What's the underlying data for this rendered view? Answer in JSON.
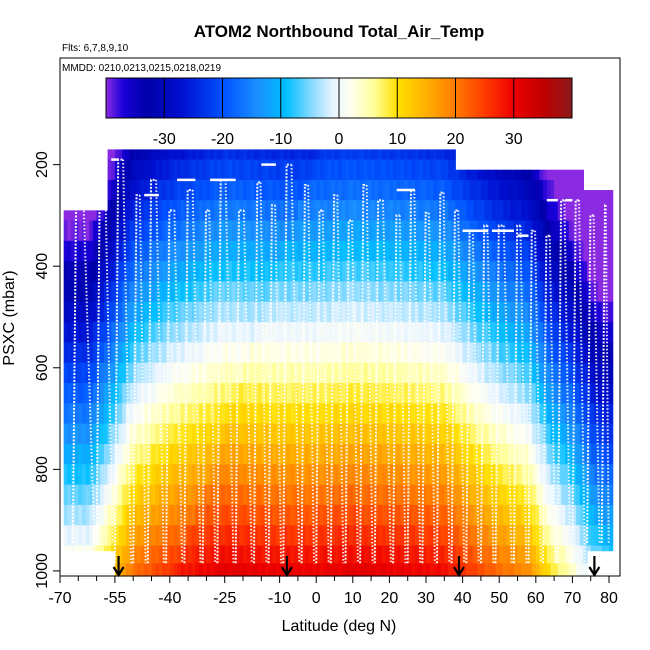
{
  "chart_data": {
    "type": "heatmap",
    "title": "ATOM2 Northbound Total_Air_Temp",
    "flights_note": "Flts: 6,7,8,9,10",
    "dates_note": "MMDD: 0210,0213,0215,0218,0219",
    "xlabel": "Latitude (deg N)",
    "ylabel": "PSXC (mbar)",
    "xlim": [
      -70,
      83
    ],
    "ylim": [
      1010,
      -10
    ],
    "x_major_ticks": [
      -70,
      -55,
      -40,
      -25,
      -10,
      0,
      10,
      20,
      30,
      40,
      50,
      60,
      70,
      80
    ],
    "x_major_tick_labels": [
      "-70",
      "-55",
      "-40",
      "-25",
      "-10",
      "0",
      "10",
      "20",
      "30",
      "40",
      "50",
      "60",
      "70",
      "80"
    ],
    "x_minor_ticks": [
      -65,
      -60,
      -50,
      -45,
      -35,
      -30,
      -20,
      -15,
      -5,
      5,
      15,
      25,
      35,
      45,
      55,
      65,
      75
    ],
    "y_ticks": [
      200,
      400,
      600,
      800,
      1000
    ],
    "y_tick_labels": [
      "200",
      "400",
      "600",
      "800",
      "1000"
    ],
    "colorbar": {
      "range": [
        -40,
        40
      ],
      "ticks": [
        -30,
        -20,
        -10,
        0,
        10,
        20,
        30
      ],
      "tick_labels": [
        "-30",
        "-20",
        "-10",
        "0",
        "10",
        "20",
        "30"
      ],
      "stops": [
        {
          "v": -40,
          "c": "#8a2be2"
        },
        {
          "v": -37,
          "c": "#1800d8"
        },
        {
          "v": -33,
          "c": "#0000a8"
        },
        {
          "v": -27,
          "c": "#0010d0"
        },
        {
          "v": -20,
          "c": "#0050ff"
        },
        {
          "v": -14,
          "c": "#1a90ff"
        },
        {
          "v": -9,
          "c": "#00bfff"
        },
        {
          "v": -5,
          "c": "#80d8ff"
        },
        {
          "v": -1,
          "c": "#e8f4ff"
        },
        {
          "v": 2,
          "c": "#fffff0"
        },
        {
          "v": 6,
          "c": "#ffff9a"
        },
        {
          "v": 10,
          "c": "#ffe000"
        },
        {
          "v": 15,
          "c": "#ffb000"
        },
        {
          "v": 20,
          "c": "#ff7a00"
        },
        {
          "v": 25,
          "c": "#ff3c00"
        },
        {
          "v": 30,
          "c": "#ee0000"
        },
        {
          "v": 35,
          "c": "#c00000"
        },
        {
          "v": 40,
          "c": "#8b1a1a"
        }
      ]
    },
    "pressure_levels": [
      170,
      210,
      250,
      290,
      330,
      370,
      410,
      450,
      490,
      530,
      570,
      610,
      650,
      690,
      730,
      770,
      810,
      850,
      890,
      930,
      970,
      1000
    ],
    "temperature_model": {
      "t_surface": 28,
      "lapse_per_100mbar": 6.4,
      "lat_columns": [
        {
          "lat": -68,
          "sfc": 5
        },
        {
          "lat": -62,
          "sfc": 5
        },
        {
          "lat": -56,
          "sfc": 13
        },
        {
          "lat": -50,
          "sfc": 22
        },
        {
          "lat": -40,
          "sfc": 27
        },
        {
          "lat": -25,
          "sfc": 31
        },
        {
          "lat": -10,
          "sfc": 30
        },
        {
          "lat": 0,
          "sfc": 30
        },
        {
          "lat": 10,
          "sfc": 31
        },
        {
          "lat": 25,
          "sfc": 30
        },
        {
          "lat": 35,
          "sfc": 29
        },
        {
          "lat": 42,
          "sfc": 25
        },
        {
          "lat": 50,
          "sfc": 21
        },
        {
          "lat": 58,
          "sfc": 18
        },
        {
          "lat": 64,
          "sfc": 9
        },
        {
          "lat": 70,
          "sfc": 4
        },
        {
          "lat": 76,
          "sfc": -4
        },
        {
          "lat": 80,
          "sfc": -6
        }
      ],
      "segments": [
        {
          "lat0": -69,
          "lat1": -57,
          "top": 290
        },
        {
          "lat0": -57,
          "lat1": 38,
          "top": 170
        },
        {
          "lat0": 38,
          "lat1": 73,
          "top": 210
        },
        {
          "lat0": 73,
          "lat1": 80.5,
          "top": 250
        }
      ],
      "bottoms": [
        {
          "lat0": -69,
          "lat1": -55,
          "bottom": 960
        },
        {
          "lat0": -55,
          "lat1": 74,
          "bottom": 1010
        },
        {
          "lat0": 74,
          "lat1": 80.5,
          "bottom": 960
        }
      ]
    },
    "profile_latitudes": [
      -66.5,
      -60,
      -55,
      -50,
      -46,
      -41,
      -36,
      -31,
      -27,
      -22,
      -17,
      -13,
      -9,
      -4,
      0,
      4,
      8,
      12,
      16,
      21,
      25,
      29,
      33,
      37,
      41,
      45,
      49,
      54,
      58,
      62,
      66,
      70,
      74,
      78
    ],
    "profile_top": [
      270,
      200,
      190,
      260,
      230,
      290,
      250,
      290,
      230,
      290,
      235,
      280,
      200,
      240,
      290,
      260,
      310,
      240,
      270,
      300,
      250,
      295,
      255,
      290,
      330,
      320,
      320,
      320,
      330,
      340,
      270,
      270,
      300,
      280
    ],
    "flight_legs": [
      {
        "lat0": -68,
        "lat1": -64,
        "p": 270
      },
      {
        "lat0": -60,
        "lat1": -57,
        "p": 200
      },
      {
        "lat0": -56,
        "lat1": -54,
        "p": 190
      },
      {
        "lat0": -47,
        "lat1": -43,
        "p": 260
      },
      {
        "lat0": -38,
        "lat1": -33,
        "p": 230
      },
      {
        "lat0": -29,
        "lat1": -22,
        "p": 230
      },
      {
        "lat0": -15,
        "lat1": -11,
        "p": 200
      },
      {
        "lat0": 22,
        "lat1": 27,
        "p": 250
      },
      {
        "lat0": 40,
        "lat1": 47,
        "p": 330
      },
      {
        "lat0": 48,
        "lat1": 54,
        "p": 330
      },
      {
        "lat0": 55,
        "lat1": 58,
        "p": 340
      },
      {
        "lat0": 63,
        "lat1": 66,
        "p": 270
      },
      {
        "lat0": 68,
        "lat1": 70,
        "p": 270
      }
    ],
    "arrow_latitudes": [
      -54,
      -8,
      39,
      76
    ]
  }
}
